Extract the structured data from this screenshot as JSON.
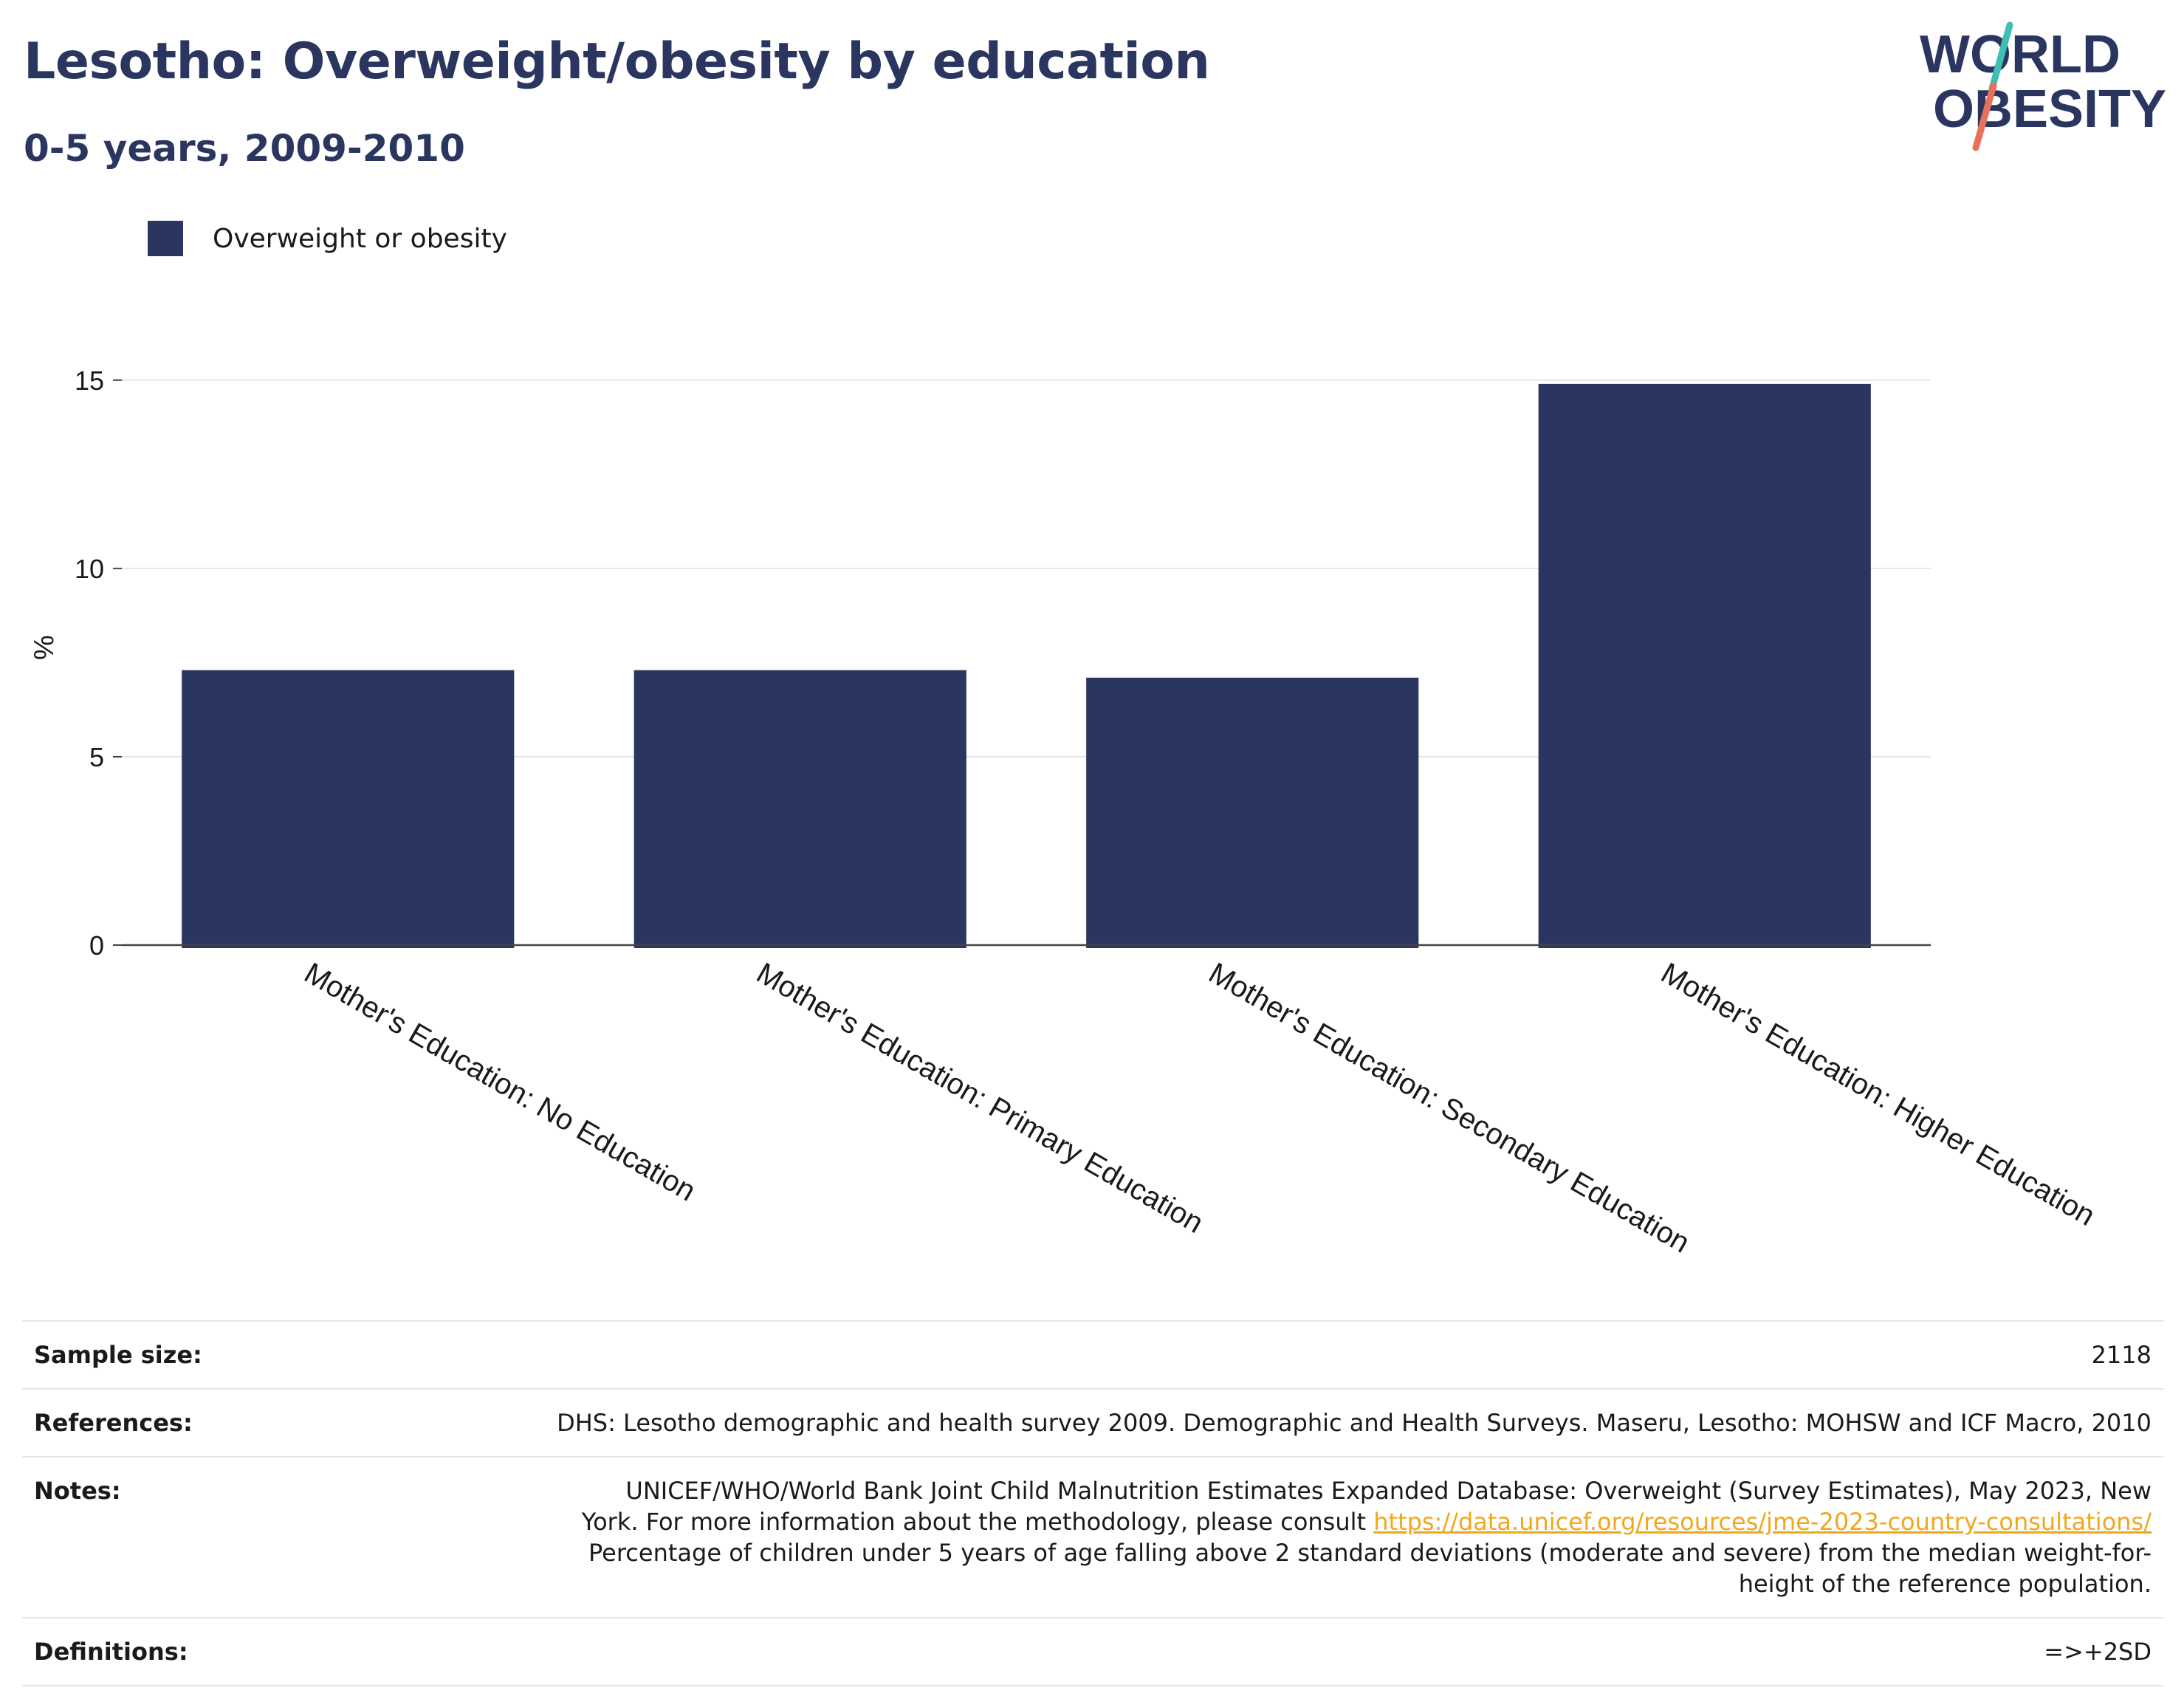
{
  "header": {
    "title": "Lesotho: Overweight/obesity by education",
    "subtitle": "0-5 years, 2009-2010"
  },
  "logo": {
    "line1": "WORLD",
    "line2": "OBESITY",
    "colors": {
      "text": "#2a3660",
      "slash_top": "#3fbfb4",
      "slash_bottom": "#e8715c"
    }
  },
  "legend": {
    "label": "Overweight or obesity",
    "color": "#2a3660"
  },
  "chart_data": {
    "type": "bar",
    "categories": [
      "Mother's Education: No Education",
      "Mother's Education: Primary Education",
      "Mother's Education: Secondary Education",
      "Mother's Education: Higher Education"
    ],
    "series": [
      {
        "name": "Overweight or obesity",
        "values": [
          7.3,
          7.3,
          7.1,
          14.9
        ],
        "color": "#2a3660"
      }
    ],
    "ylabel": "%",
    "xlabel": "",
    "ylim": [
      0,
      15.8
    ],
    "yticks": [
      0,
      5,
      10,
      15
    ],
    "grid": true,
    "legend_position": "top-left"
  },
  "info": {
    "sample_size_label": "Sample size:",
    "sample_size_value": "2118",
    "references_label": "References:",
    "references_value": "DHS: Lesotho demographic and health survey 2009. Demographic and Health Surveys. Maseru, Lesotho: MOHSW and ICF Macro, 2010",
    "notes_label": "Notes:",
    "notes_line1": "UNICEF/WHO/World Bank Joint Child Malnutrition Estimates Expanded Database: Overweight (Survey Estimates), May 2023, New",
    "notes_line2_prefix": "York. For more information about the methodology, please consult ",
    "notes_link": "https://data.unicef.org/resources/jme-2023-country-consultations/",
    "notes_line3": "Percentage of children under 5 years of age falling above 2 standard deviations (moderate and severe) from the median weight-for-",
    "notes_line4": "height of the reference population.",
    "definitions_label": "Definitions:",
    "definitions_value": "=>+2SD"
  }
}
